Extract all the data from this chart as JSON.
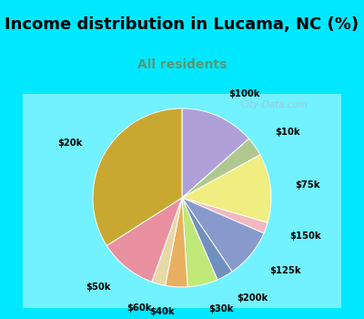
{
  "title": "Income distribution in Lucama, NC (%)",
  "subtitle": "All residents",
  "title_fontsize": 13,
  "subtitle_fontsize": 10,
  "slices": [
    {
      "label": "$100k",
      "value": 13.5,
      "color": "#b0a0d8"
    },
    {
      "label": "$10k",
      "value": 3.5,
      "color": "#b0c890"
    },
    {
      "label": "$75k",
      "value": 12.5,
      "color": "#f0ee80"
    },
    {
      "label": "$150k",
      "value": 2.0,
      "color": "#f0b8c0"
    },
    {
      "label": "$125k",
      "value": 9.0,
      "color": "#8899cc"
    },
    {
      "label": "$200k",
      "value": 3.0,
      "color": "#7090c0"
    },
    {
      "label": "$30k",
      "value": 5.5,
      "color": "#c0e878"
    },
    {
      "label": "$40k",
      "value": 4.0,
      "color": "#e8b060"
    },
    {
      "label": "$60k",
      "value": 2.5,
      "color": "#e8d8a8"
    },
    {
      "label": "$50k",
      "value": 10.5,
      "color": "#e890a0"
    },
    {
      "label": "$20k",
      "value": 34.0,
      "color": "#c8a830"
    }
  ],
  "outer_bg": "#00e8ff",
  "inner_bg_outer": "#d8f0e8",
  "inner_bg_inner": "#ffffff",
  "title_color": "#000000",
  "subtitle_color": "#559977",
  "label_color": "#000000",
  "watermark": "City-Data.com",
  "start_angle": 90,
  "border_width": 8
}
